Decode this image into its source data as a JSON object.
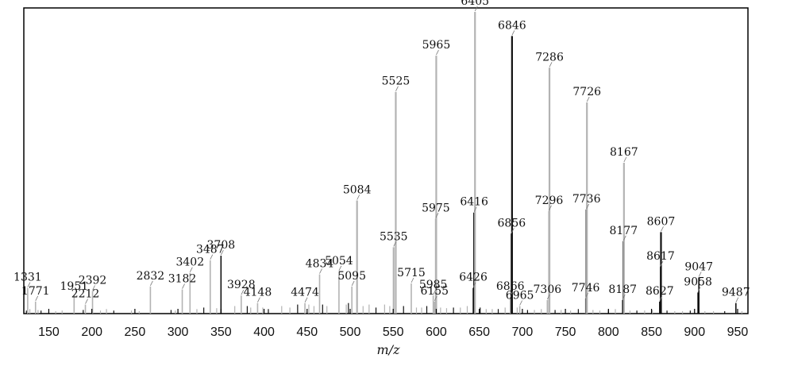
{
  "chart_data": {
    "type": "bar",
    "xlabel": "m/z",
    "xlim": [
      121,
      962
    ],
    "ylim": [
      0,
      100
    ],
    "grid": false,
    "xticks": [
      150,
      200,
      250,
      300,
      350,
      400,
      450,
      500,
      550,
      600,
      650,
      700,
      750,
      800,
      850,
      900,
      950
    ],
    "xtick_labels": [
      "150",
      "200",
      "250",
      "300",
      "350",
      "400",
      "450",
      "500",
      "550",
      "600",
      "650",
      "700",
      "750",
      "800",
      "850",
      "900",
      "950"
    ],
    "colors": {
      "gray_peak": "#b3b3b3",
      "black_peak": "#111111",
      "axis": "#000000"
    },
    "peaks": [
      {
        "x": 125.5,
        "y": 8.5,
        "label": "1331",
        "color": "gray"
      },
      {
        "x": 134.6,
        "y": 4.0,
        "label": "1771",
        "color": "gray"
      },
      {
        "x": 179.4,
        "y": 5.5,
        "label": "1951",
        "color": "gray"
      },
      {
        "x": 192.5,
        "y": 3.0,
        "label": "2212",
        "color": "gray"
      },
      {
        "x": 200.8,
        "y": 7.5,
        "label": "2392",
        "color": "gray"
      },
      {
        "x": 268.0,
        "y": 9.0,
        "label": "2832",
        "color": "gray"
      },
      {
        "x": 314.0,
        "y": 13.5,
        "label": "3402",
        "color": "gray"
      },
      {
        "x": 305.0,
        "y": 8.0,
        "label": "3182",
        "color": "gray"
      },
      {
        "x": 337.5,
        "y": 17.7,
        "label": "3487",
        "color": "gray"
      },
      {
        "x": 350.0,
        "y": 19.2,
        "label": "3708",
        "color": "black"
      },
      {
        "x": 373.5,
        "y": 6.0,
        "label": "3928",
        "color": "gray"
      },
      {
        "x": 392.5,
        "y": 3.5,
        "label": "4148",
        "color": "gray"
      },
      {
        "x": 447.5,
        "y": 3.5,
        "label": "4474",
        "color": "gray"
      },
      {
        "x": 464.5,
        "y": 13.0,
        "label": "4834",
        "color": "gray"
      },
      {
        "x": 487.0,
        "y": 14.0,
        "label": "5054",
        "color": "gray"
      },
      {
        "x": 502.0,
        "y": 9.0,
        "label": "5095",
        "color": "gray"
      },
      {
        "x": 508.0,
        "y": 37.5,
        "label": "5084",
        "color": "gray"
      },
      {
        "x": 550.5,
        "y": 22.0,
        "label": "5535",
        "color": "gray"
      },
      {
        "x": 553.0,
        "y": 73.5,
        "label": "5525",
        "color": "gray"
      },
      {
        "x": 571.0,
        "y": 10.0,
        "label": "5715",
        "color": "gray"
      },
      {
        "x": 596.5,
        "y": 6.0,
        "label": "5985",
        "color": "gray"
      },
      {
        "x": 598.0,
        "y": 4.0,
        "label": "6155",
        "color": "gray"
      },
      {
        "x": 599.5,
        "y": 31.5,
        "label": "5975",
        "color": "gray"
      },
      {
        "x": 600.0,
        "y": 85.5,
        "label": "5965",
        "color": "gray"
      },
      {
        "x": 643.0,
        "y": 8.5,
        "label": "6426",
        "color": "black"
      },
      {
        "x": 644.0,
        "y": 33.5,
        "label": "6416",
        "color": "black"
      },
      {
        "x": 645.0,
        "y": 100.0,
        "label": "6405",
        "color": "gray"
      },
      {
        "x": 686.0,
        "y": 5.5,
        "label": "6866",
        "color": "gray"
      },
      {
        "x": 687.5,
        "y": 26.5,
        "label": "6856",
        "color": "black"
      },
      {
        "x": 688.0,
        "y": 92.0,
        "label": "6846",
        "color": "black"
      },
      {
        "x": 697.0,
        "y": 2.5,
        "label": "6965",
        "color": "gray"
      },
      {
        "x": 729.0,
        "y": 4.5,
        "label": "7306",
        "color": "gray"
      },
      {
        "x": 731.0,
        "y": 34.0,
        "label": "7296",
        "color": "gray"
      },
      {
        "x": 731.5,
        "y": 81.5,
        "label": "7286",
        "color": "gray"
      },
      {
        "x": 773.5,
        "y": 5.0,
        "label": "7746",
        "color": "gray"
      },
      {
        "x": 774.5,
        "y": 34.5,
        "label": "7736",
        "color": "black"
      },
      {
        "x": 775.0,
        "y": 70.0,
        "label": "7726",
        "color": "gray"
      },
      {
        "x": 816.5,
        "y": 4.5,
        "label": "8187",
        "color": "black"
      },
      {
        "x": 817.5,
        "y": 24.0,
        "label": "8177",
        "color": "black"
      },
      {
        "x": 818.0,
        "y": 50.0,
        "label": "8167",
        "color": "gray"
      },
      {
        "x": 859.5,
        "y": 4.0,
        "label": "8627",
        "color": "black"
      },
      {
        "x": 860.5,
        "y": 15.5,
        "label": "8617",
        "color": "black"
      },
      {
        "x": 861.0,
        "y": 27.0,
        "label": "8607",
        "color": "black"
      },
      {
        "x": 904.0,
        "y": 7.0,
        "label": "9058",
        "color": "black"
      },
      {
        "x": 905.0,
        "y": 12.0,
        "label": "9047",
        "color": "black"
      },
      {
        "x": 948.0,
        "y": 3.5,
        "label": "9487",
        "color": "black"
      }
    ],
    "minor_peaks": [
      {
        "x": 124.0,
        "y": 1.0
      },
      {
        "x": 128.0,
        "y": 1.5
      },
      {
        "x": 137.5,
        "y": 1.2
      },
      {
        "x": 141.0,
        "y": 1.0
      },
      {
        "x": 158.0,
        "y": 0.8
      },
      {
        "x": 165.5,
        "y": 1.0
      },
      {
        "x": 190.0,
        "y": 1.2
      },
      {
        "x": 210.0,
        "y": 1.0
      },
      {
        "x": 217.0,
        "y": 1.5
      },
      {
        "x": 225.5,
        "y": 1.0
      },
      {
        "x": 246.0,
        "y": 1.0
      },
      {
        "x": 255.0,
        "y": 0.8
      },
      {
        "x": 292.0,
        "y": 1.2
      },
      {
        "x": 297.0,
        "y": 1.0
      },
      {
        "x": 322.0,
        "y": 1.5
      },
      {
        "x": 330.0,
        "y": 2.0
      },
      {
        "x": 345.0,
        "y": 1.8
      },
      {
        "x": 366.0,
        "y": 2.5
      },
      {
        "x": 380.5,
        "y": 2.5
      },
      {
        "x": 384.5,
        "y": 2.0
      },
      {
        "x": 398.5,
        "y": 2.0
      },
      {
        "x": 405.0,
        "y": 1.5
      },
      {
        "x": 420.5,
        "y": 2.5
      },
      {
        "x": 430.0,
        "y": 2.0
      },
      {
        "x": 439.0,
        "y": 3.0
      },
      {
        "x": 452.0,
        "y": 3.0
      },
      {
        "x": 458.0,
        "y": 2.5
      },
      {
        "x": 468.0,
        "y": 3.0
      },
      {
        "x": 473.0,
        "y": 2.5
      },
      {
        "x": 495.5,
        "y": 3.0
      },
      {
        "x": 498.0,
        "y": 3.5
      },
      {
        "x": 515.0,
        "y": 2.5
      },
      {
        "x": 522.0,
        "y": 3.0
      },
      {
        "x": 530.0,
        "y": 2.0
      },
      {
        "x": 540.0,
        "y": 3.0
      },
      {
        "x": 546.0,
        "y": 2.5
      },
      {
        "x": 562.0,
        "y": 2.5
      },
      {
        "x": 577.0,
        "y": 2.0
      },
      {
        "x": 583.0,
        "y": 2.0
      },
      {
        "x": 589.0,
        "y": 2.5
      },
      {
        "x": 605.0,
        "y": 2.0
      },
      {
        "x": 612.0,
        "y": 1.8
      },
      {
        "x": 620.0,
        "y": 2.0
      },
      {
        "x": 628.0,
        "y": 2.0
      },
      {
        "x": 636.0,
        "y": 2.5
      },
      {
        "x": 651.0,
        "y": 2.0
      },
      {
        "x": 658.0,
        "y": 1.5
      },
      {
        "x": 665.0,
        "y": 1.5
      },
      {
        "x": 672.0,
        "y": 1.5
      },
      {
        "x": 680.0,
        "y": 2.0
      },
      {
        "x": 694.0,
        "y": 2.0
      },
      {
        "x": 706.0,
        "y": 1.2
      },
      {
        "x": 714.0,
        "y": 1.2
      },
      {
        "x": 722.0,
        "y": 1.5
      },
      {
        "x": 738.0,
        "y": 1.2
      },
      {
        "x": 745.0,
        "y": 1.2
      },
      {
        "x": 756.0,
        "y": 1.0
      },
      {
        "x": 765.0,
        "y": 1.5
      },
      {
        "x": 782.0,
        "y": 1.2
      },
      {
        "x": 790.0,
        "y": 1.0
      },
      {
        "x": 800.0,
        "y": 1.2
      },
      {
        "x": 808.0,
        "y": 1.5
      },
      {
        "x": 825.0,
        "y": 1.0
      },
      {
        "x": 833.0,
        "y": 1.0
      },
      {
        "x": 842.0,
        "y": 1.0
      },
      {
        "x": 851.0,
        "y": 1.2
      },
      {
        "x": 868.0,
        "y": 1.0
      },
      {
        "x": 877.0,
        "y": 0.8
      },
      {
        "x": 886.0,
        "y": 0.8
      },
      {
        "x": 895.0,
        "y": 1.0
      },
      {
        "x": 912.0,
        "y": 0.8
      },
      {
        "x": 922.0,
        "y": 0.8
      },
      {
        "x": 935.0,
        "y": 0.8
      },
      {
        "x": 955.0,
        "y": 0.8
      }
    ]
  }
}
